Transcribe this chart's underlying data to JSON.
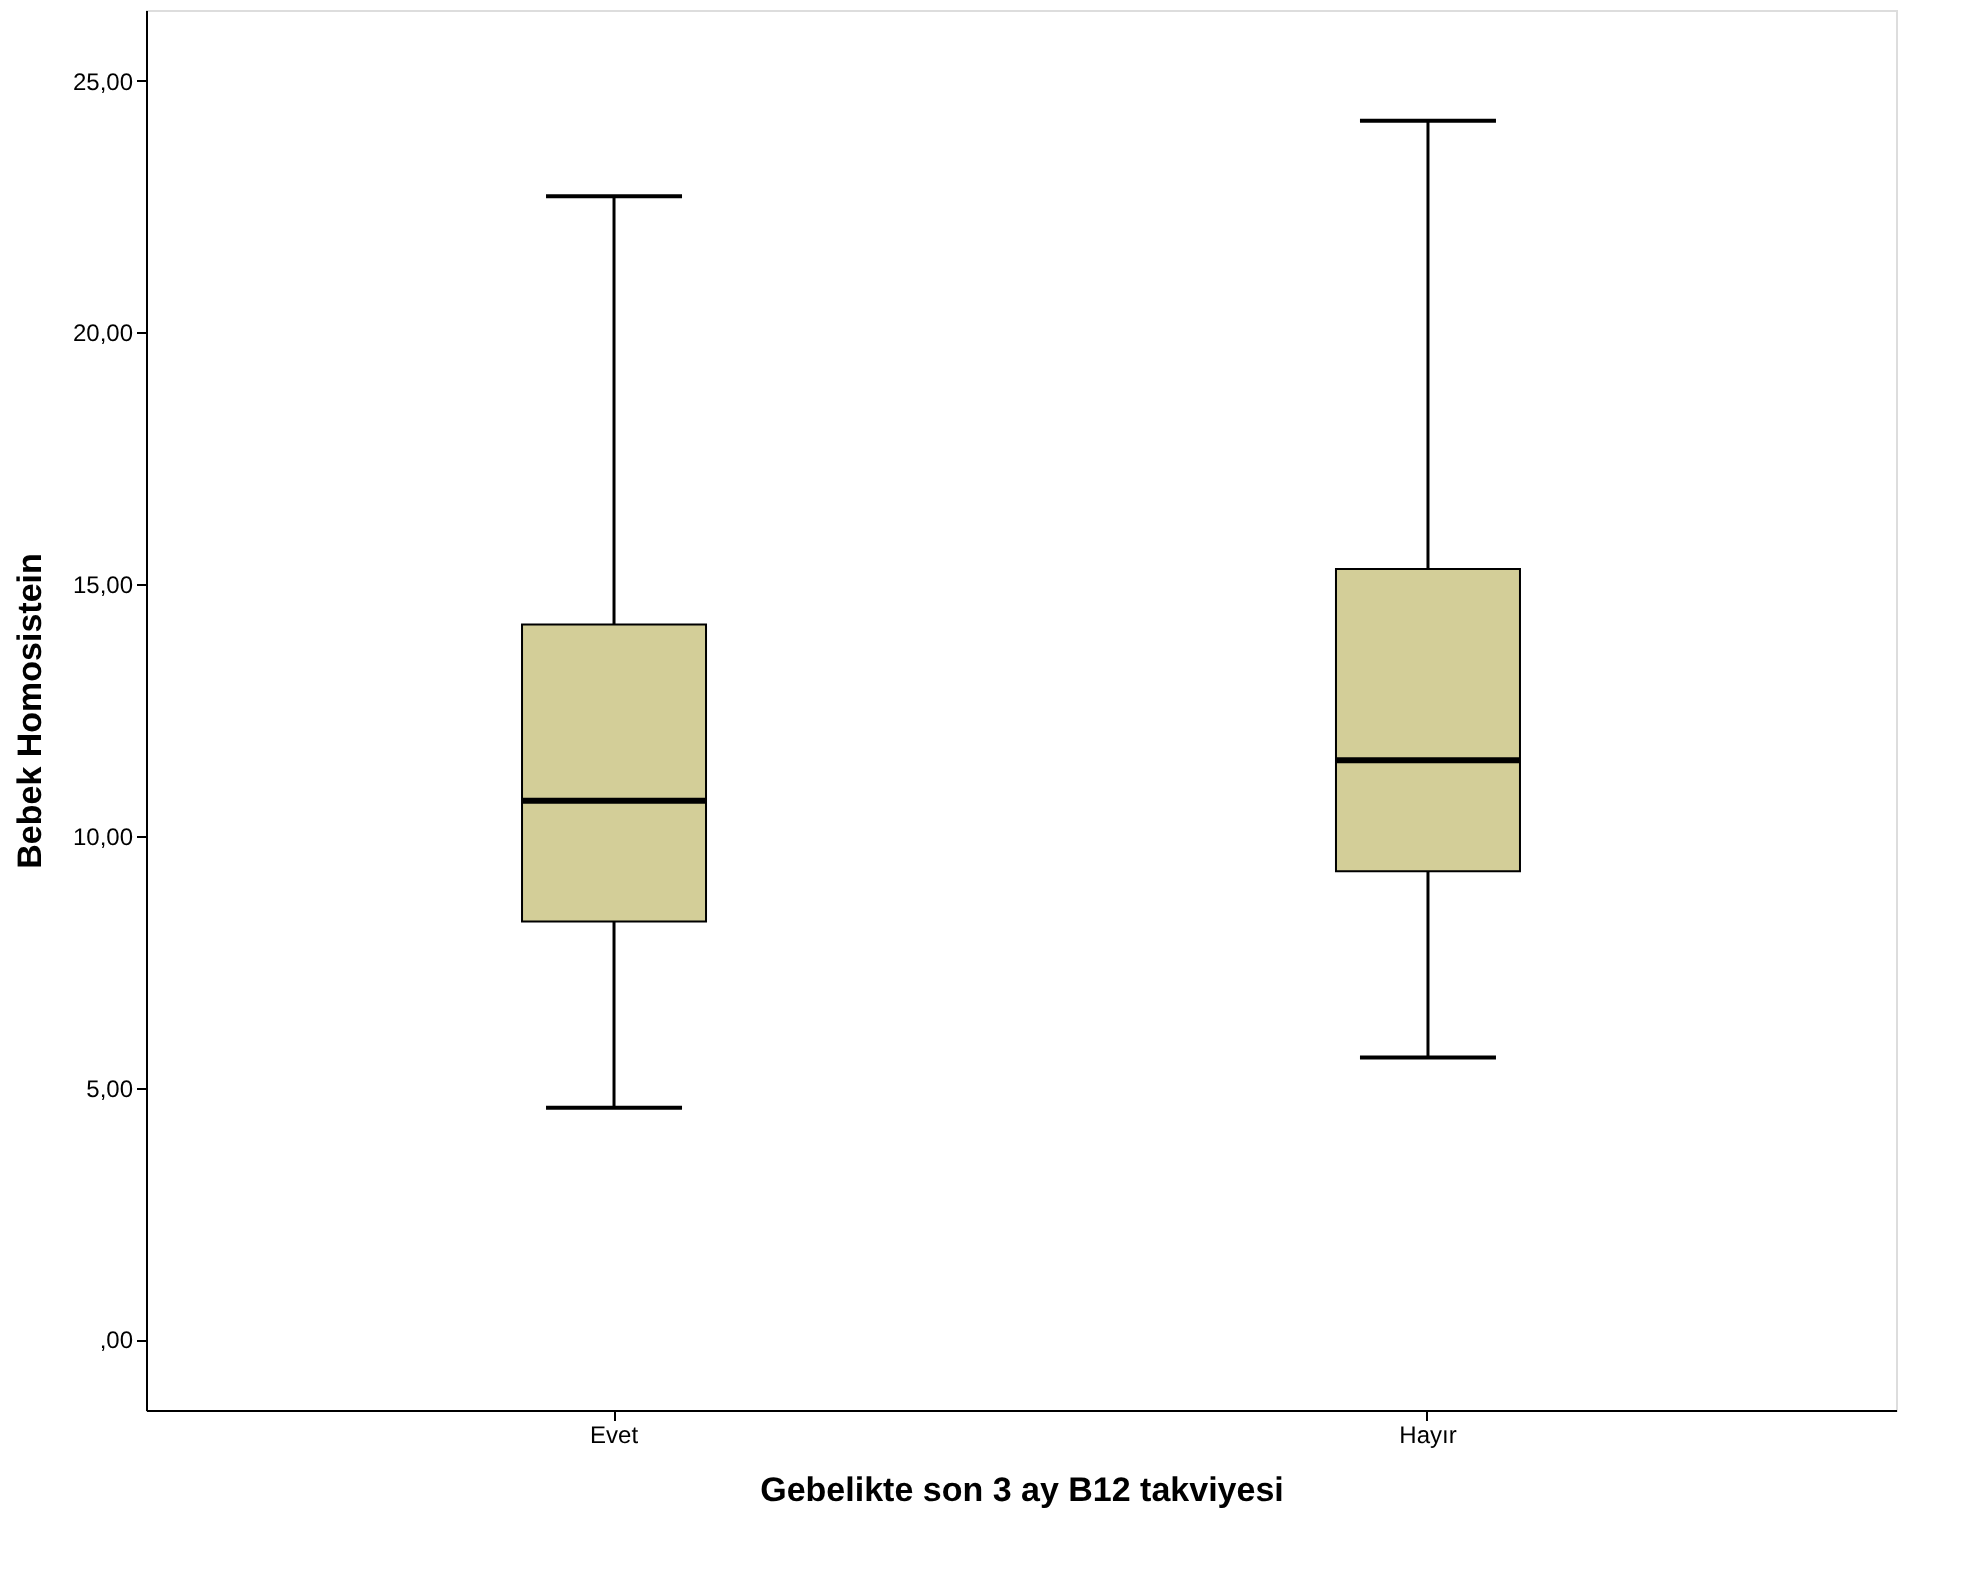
{
  "chart_data": {
    "type": "box",
    "xlabel": "Gebelikte son 3 ay B12 takviyesi",
    "ylabel": "Bebek Homosistein",
    "categories": [
      "Evet",
      "Hayır"
    ],
    "boxes": [
      {
        "low": 4.6,
        "q1": 8.3,
        "median": 10.7,
        "q3": 14.2,
        "high": 22.7
      },
      {
        "low": 5.6,
        "q1": 9.3,
        "median": 11.5,
        "q3": 15.3,
        "high": 24.2
      }
    ],
    "color": "#d3ce98",
    "ylim": [
      -1.4,
      26.4
    ],
    "yticks": [
      {
        "value": 0,
        "label": ",00"
      },
      {
        "value": 5,
        "label": "5,00"
      },
      {
        "value": 10,
        "label": "10,00"
      },
      {
        "value": 15,
        "label": "15,00"
      },
      {
        "value": 20,
        "label": "20,00"
      },
      {
        "value": 25,
        "label": "25,00"
      }
    ],
    "grid": false
  }
}
